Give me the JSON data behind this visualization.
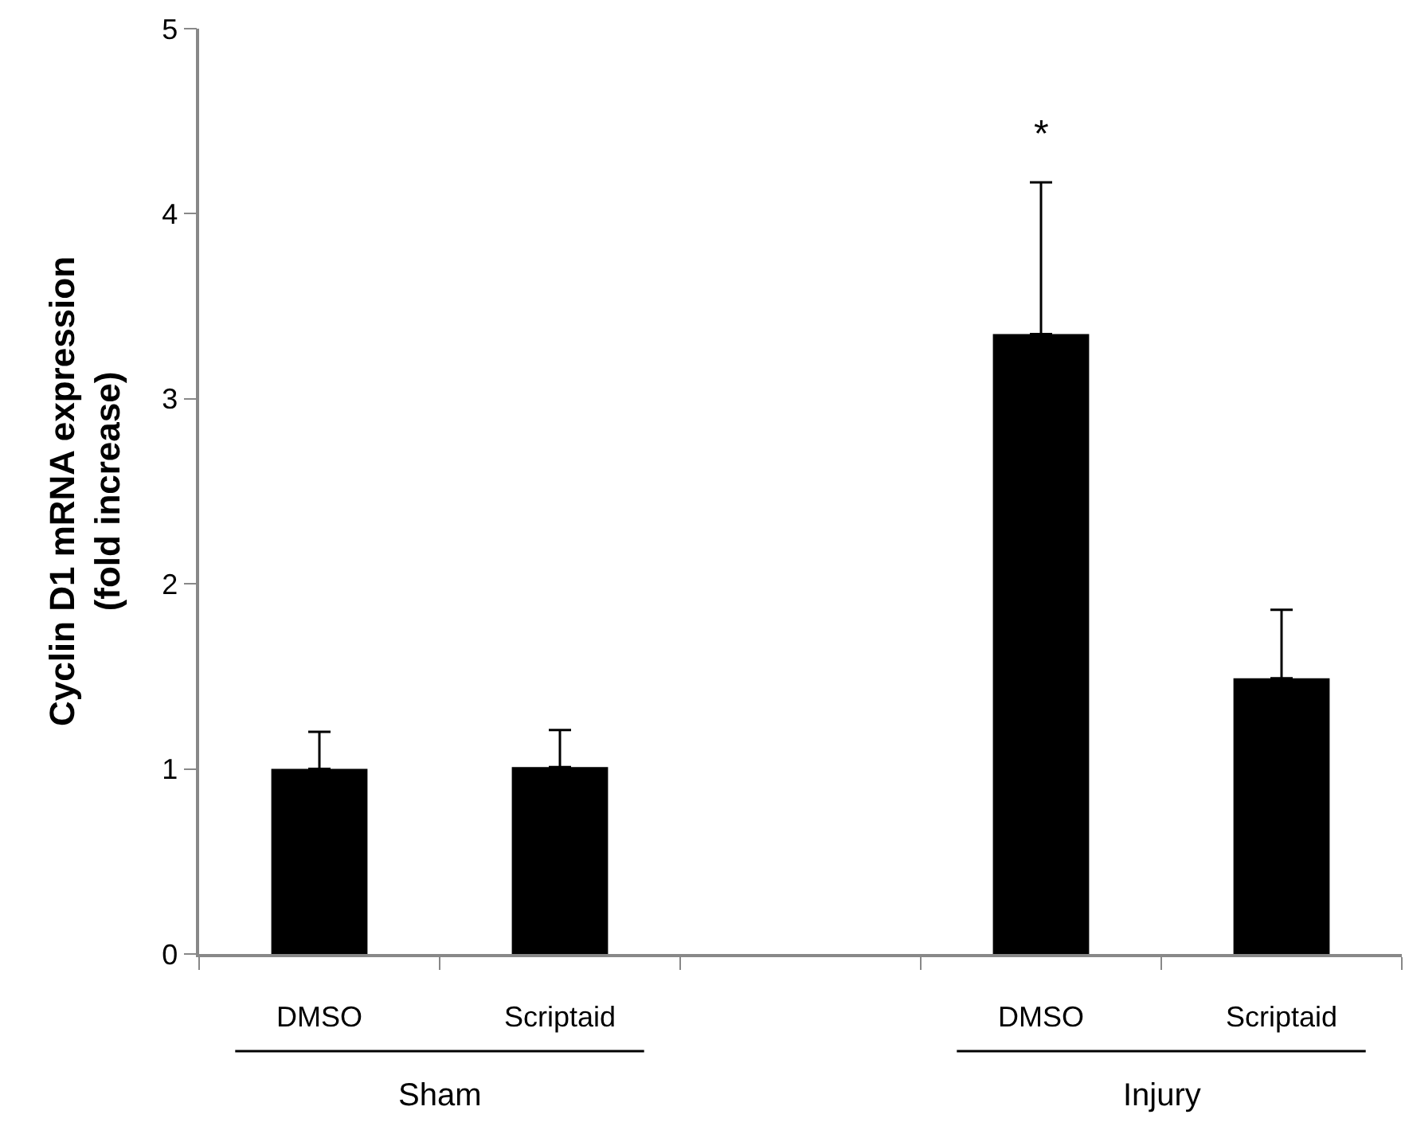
{
  "chart_data": {
    "type": "bar",
    "ylabel": "Cyclin D1 mRNA expression\n(fold increase)",
    "categories": [
      "DMSO",
      "Scriptaid",
      null,
      "DMSO",
      "Scriptaid"
    ],
    "values": [
      1.0,
      1.01,
      null,
      3.35,
      1.49
    ],
    "errors": [
      [
        1.0,
        1.2
      ],
      [
        1.01,
        1.21
      ],
      null,
      [
        3.35,
        4.17
      ],
      [
        1.49,
        1.86
      ]
    ],
    "color": "#000000",
    "ylim": [
      0,
      5
    ],
    "yticks": [
      0,
      1,
      2,
      3,
      4,
      5
    ],
    "annotations": [
      "Sham",
      "Injury",
      "*"
    ]
  }
}
